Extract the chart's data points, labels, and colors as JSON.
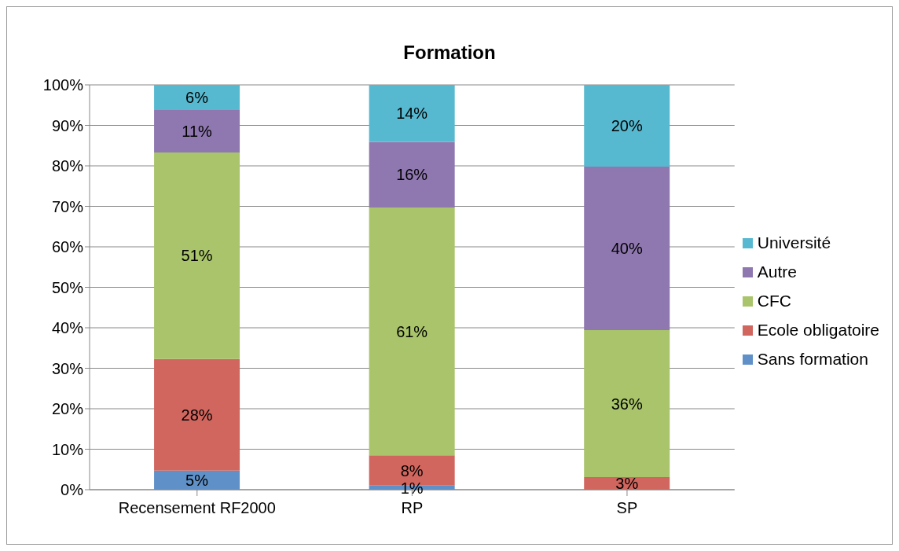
{
  "chart_data": {
    "type": "bar",
    "title": "Formation",
    "stacked": true,
    "categories": [
      "Recensement RF2000",
      "RP",
      "SP"
    ],
    "series": [
      {
        "name": "Sans formation",
        "color": "#5f91c8",
        "values": [
          4.7,
          1.0,
          0
        ],
        "value_labels": [
          "5%",
          "1%",
          null
        ]
      },
      {
        "name": "Ecole obligatoire",
        "color": "#d0665e",
        "values": [
          27.6,
          7.5,
          3.1
        ],
        "value_labels": [
          "28%",
          "8%",
          "3%"
        ]
      },
      {
        "name": "CFC",
        "color": "#a9c46a",
        "values": [
          51,
          61.2,
          36.3
        ],
        "value_labels": [
          "51%",
          "61%",
          "36%"
        ]
      },
      {
        "name": "Autre",
        "color": "#8f78b0",
        "values": [
          10.5,
          16.2,
          40.4
        ],
        "value_labels": [
          "11%",
          "16%",
          "40%"
        ]
      },
      {
        "name": "Université",
        "color": "#57b9d0",
        "values": [
          6.2,
          14.1,
          20.2
        ],
        "value_labels": [
          "6%",
          "14%",
          "20%"
        ]
      }
    ],
    "ylim": [
      0,
      100
    ],
    "yticks": [
      {
        "value": 0,
        "label": "0%"
      },
      {
        "value": 10,
        "label": "10%"
      },
      {
        "value": 20,
        "label": "20%"
      },
      {
        "value": 30,
        "label": "30%"
      },
      {
        "value": 40,
        "label": "40%"
      },
      {
        "value": 50,
        "label": "50%"
      },
      {
        "value": 60,
        "label": "60%"
      },
      {
        "value": 70,
        "label": "70%"
      },
      {
        "value": 80,
        "label": "80%"
      },
      {
        "value": 90,
        "label": "90%"
      },
      {
        "value": 100,
        "label": "100%"
      }
    ],
    "grid": "y",
    "legend": "right"
  }
}
